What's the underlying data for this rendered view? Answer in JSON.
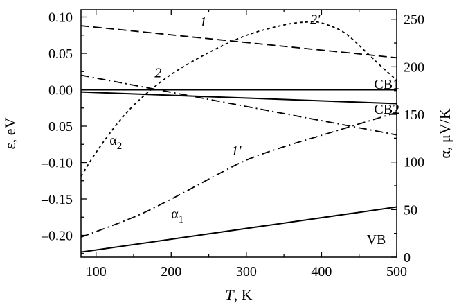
{
  "chart_data": {
    "type": "line",
    "x_axis": {
      "label_italic": "T",
      "label_rest": ", K",
      "range": [
        80,
        500
      ],
      "ticks": [
        100,
        200,
        300,
        400,
        500
      ],
      "minor_step": 50
    },
    "y_left": {
      "label": "ε, eV",
      "range": [
        -0.23,
        0.11
      ],
      "ticks": [
        {
          "value": 0.1,
          "label": "0.10"
        },
        {
          "value": 0.05,
          "label": "0.05"
        },
        {
          "value": 0.0,
          "label": "0.00"
        },
        {
          "value": -0.05,
          "label": "–0.05"
        },
        {
          "value": -0.1,
          "label": "–0.10"
        },
        {
          "value": -0.15,
          "label": "–0.15"
        },
        {
          "value": -0.2,
          "label": "–0.20"
        }
      ],
      "minor_step": 0.025
    },
    "y_right": {
      "label": "α, μV/K",
      "range": [
        0,
        260
      ],
      "ticks": [
        0,
        50,
        100,
        150,
        200,
        250
      ],
      "minor_step": 25
    },
    "series": [
      {
        "id": "line-1",
        "axis": "left",
        "style": "dash",
        "points": [
          [
            80,
            0.088
          ],
          [
            500,
            0.044
          ]
        ]
      },
      {
        "id": "line-2",
        "axis": "left",
        "style": "dashdot",
        "points": [
          [
            80,
            0.02
          ],
          [
            500,
            -0.062
          ]
        ]
      },
      {
        "id": "line-CB1",
        "axis": "left",
        "style": "solid",
        "points": [
          [
            80,
            0.0
          ],
          [
            500,
            0.0
          ]
        ]
      },
      {
        "id": "line-CB2",
        "axis": "left",
        "style": "solid",
        "points": [
          [
            80,
            -0.003
          ],
          [
            500,
            -0.019
          ]
        ]
      },
      {
        "id": "line-VB",
        "axis": "left",
        "style": "solid",
        "points": [
          [
            80,
            -0.223
          ],
          [
            500,
            -0.161
          ]
        ]
      },
      {
        "id": "line-1prime",
        "axis": "right",
        "style": "dashdot",
        "points": [
          [
            80,
            21
          ],
          [
            150,
            42
          ],
          [
            200,
            61
          ],
          [
            250,
            82
          ],
          [
            300,
            102
          ],
          [
            350,
            116
          ],
          [
            400,
            128
          ],
          [
            450,
            140
          ],
          [
            500,
            152
          ]
        ]
      },
      {
        "id": "line-2prime",
        "axis": "right",
        "style": "dot",
        "points": [
          [
            80,
            85
          ],
          [
            100,
            110
          ],
          [
            130,
            142
          ],
          [
            160,
            167
          ],
          [
            200,
            192
          ],
          [
            250,
            215
          ],
          [
            300,
            233
          ],
          [
            350,
            244
          ],
          [
            380,
            247
          ],
          [
            400,
            246
          ],
          [
            430,
            236
          ],
          [
            460,
            215
          ],
          [
            480,
            200
          ],
          [
            500,
            186
          ]
        ]
      }
    ],
    "annotations": [
      {
        "id": "label-1",
        "text": "1",
        "italic": true,
        "x": 238,
        "y": 0.094,
        "axis": "left"
      },
      {
        "id": "label-2",
        "text": "2",
        "italic": true,
        "x": 178,
        "y": 0.024,
        "axis": "left"
      },
      {
        "id": "label-CB1",
        "text": "CB1",
        "italic": false,
        "x": 470,
        "y": 0.008,
        "axis": "left"
      },
      {
        "id": "label-CB2",
        "text": "CB2",
        "italic": false,
        "x": 470,
        "y": -0.026,
        "axis": "left"
      },
      {
        "id": "label-VB",
        "text": "VB",
        "italic": false,
        "x": 460,
        "y": -0.205,
        "axis": "left"
      },
      {
        "id": "label-1prime",
        "text": "1'",
        "italic": true,
        "x": 280,
        "y": 112,
        "axis": "right"
      },
      {
        "id": "label-2prime",
        "text": "2'",
        "italic": true,
        "x": 385,
        "y": 250,
        "axis": "right"
      },
      {
        "id": "label-alpha1",
        "text": "α",
        "sub": "1",
        "italic": false,
        "x": 200,
        "y": 46,
        "axis": "right"
      },
      {
        "id": "label-alpha2",
        "text": "α",
        "sub": "2",
        "italic": false,
        "x": 118,
        "y": 123,
        "axis": "right"
      }
    ],
    "grid": false
  }
}
